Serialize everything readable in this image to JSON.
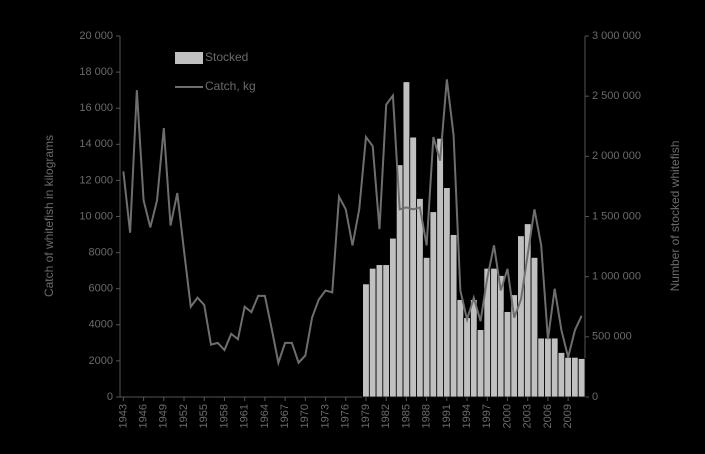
{
  "chart_data": {
    "type": "bar-line",
    "x": [
      1943,
      1944,
      1945,
      1946,
      1947,
      1948,
      1949,
      1950,
      1951,
      1952,
      1953,
      1954,
      1955,
      1956,
      1957,
      1958,
      1959,
      1960,
      1961,
      1962,
      1963,
      1964,
      1965,
      1966,
      1967,
      1968,
      1969,
      1970,
      1971,
      1972,
      1973,
      1974,
      1975,
      1976,
      1977,
      1978,
      1979,
      1980,
      1981,
      1982,
      1983,
      1984,
      1985,
      1986,
      1987,
      1988,
      1989,
      1990,
      1991,
      1992,
      1993,
      1994,
      1995,
      1996,
      1997,
      1998,
      1999,
      2000,
      2001,
      2002,
      2003,
      2004,
      2005,
      2006,
      2007,
      2008,
      2009,
      2010,
      2011
    ],
    "xlim": [
      1942.5,
      2011.5
    ],
    "xticks": [
      1943,
      1946,
      1949,
      1952,
      1955,
      1958,
      1961,
      1964,
      1967,
      1970,
      1973,
      1976,
      1979,
      1982,
      1985,
      1988,
      1991,
      1994,
      1997,
      2000,
      2003,
      2006,
      2009
    ],
    "ylabel": "Catch of whitefish in kilograms",
    "y2label": "Number of stocked whitefish",
    "ylim": [
      0,
      20000
    ],
    "yticks": [
      0,
      2000,
      4000,
      6000,
      8000,
      {
        "value": 10000,
        "label": "10 000"
      },
      {
        "value": 12000,
        "label": "12 000"
      },
      {
        "value": 14000,
        "label": "14 000"
      },
      {
        "value": 16000,
        "label": "16 000"
      },
      {
        "value": 18000,
        "label": "18 000"
      },
      {
        "value": 20000,
        "label": "20 000"
      }
    ],
    "y2lim": [
      0,
      3000000
    ],
    "y2ticks": [
      0,
      {
        "value": 500000,
        "label": "500 000"
      },
      {
        "value": 1000000,
        "label": "1 000 000"
      },
      {
        "value": 1500000,
        "label": "1 500 000"
      },
      {
        "value": 2000000,
        "label": "2 000 000"
      },
      {
        "value": 2500000,
        "label": "2 500 000"
      },
      {
        "value": 3000000,
        "label": "3 000 000"
      }
    ],
    "legend": "top-left",
    "series": [
      {
        "name": "Stocked",
        "kind": "bar",
        "axis": "y2",
        "color": "#c0c0c0",
        "values": [
          null,
          null,
          null,
          null,
          null,
          null,
          null,
          null,
          null,
          null,
          null,
          null,
          null,
          null,
          null,
          null,
          null,
          null,
          null,
          null,
          null,
          null,
          null,
          null,
          null,
          null,
          null,
          null,
          null,
          null,
          null,
          null,
          null,
          null,
          null,
          null,
          940000,
          1070000,
          1100000,
          1100000,
          1320000,
          1930000,
          2620000,
          2160000,
          1650000,
          1160000,
          1540000,
          2150000,
          1740000,
          1350000,
          810000,
          660000,
          810000,
          560000,
          1070000,
          1070000,
          1010000,
          710000,
          850000,
          1340000,
          1440000,
          1160000,
          490000,
          490000,
          490000,
          370000,
          330000,
          330000,
          320000
        ]
      },
      {
        "name": "Catch, kg",
        "kind": "line",
        "axis": "y",
        "color": "#6e6e6e",
        "values": [
          12500,
          9100,
          17000,
          10900,
          9400,
          10900,
          14900,
          9500,
          11300,
          8100,
          5000,
          5500,
          5100,
          2900,
          3000,
          2600,
          3500,
          3200,
          5000,
          4700,
          5600,
          5600,
          3800,
          1900,
          3000,
          3000,
          1900,
          2300,
          4400,
          5400,
          5900,
          5800,
          11100,
          10400,
          8400,
          10400,
          14400,
          13900,
          9300,
          16200,
          16700,
          10400,
          10500,
          10400,
          10500,
          8400,
          14400,
          13100,
          17600,
          14500,
          5900,
          4300,
          5500,
          4200,
          6600,
          8400,
          5900,
          7100,
          4400,
          5400,
          7900,
          10400,
          8400,
          3200,
          6000,
          3700,
          2200,
          3700,
          4500
        ]
      }
    ]
  }
}
